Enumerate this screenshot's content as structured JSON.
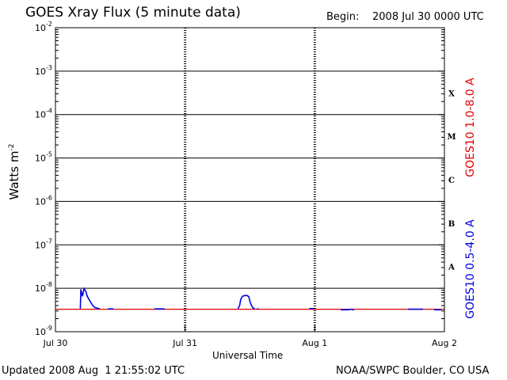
{
  "header": {
    "title": "GOES Xray Flux (5 minute data)",
    "begin_label": "Begin:",
    "begin_value": "2008 Jul 30 0000 UTC"
  },
  "footer": {
    "updated": "Updated 2008 Aug  1 21:55:02 UTC",
    "credit": "NOAA/SWPC Boulder, CO USA"
  },
  "chart_data": {
    "type": "line",
    "title": "GOES Xray Flux (5 minute data)",
    "xlabel": "Universal Time",
    "ylabel": "Watts m",
    "ylabel_superscript": "-2",
    "y_scale": "log",
    "ylim": [
      1e-09,
      0.01
    ],
    "x_range_hours": [
      0,
      72
    ],
    "x_ticks": [
      {
        "hours": 0,
        "label": "Jul 30"
      },
      {
        "hours": 24,
        "label": "Jul 31"
      },
      {
        "hours": 48,
        "label": "Aug 1"
      },
      {
        "hours": 72,
        "label": "Aug 2"
      }
    ],
    "y_ticks": [
      {
        "value": 0.01,
        "label": "10",
        "exp": "-2"
      },
      {
        "value": 0.001,
        "label": "10",
        "exp": "-3"
      },
      {
        "value": 0.0001,
        "label": "10",
        "exp": "-4"
      },
      {
        "value": 1e-05,
        "label": "10",
        "exp": "-5"
      },
      {
        "value": 1e-06,
        "label": "10",
        "exp": "-6"
      },
      {
        "value": 1e-07,
        "label": "10",
        "exp": "-7"
      },
      {
        "value": 1e-08,
        "label": "10",
        "exp": "-8"
      },
      {
        "value": 1e-09,
        "label": "10",
        "exp": "-9"
      }
    ],
    "flare_classes": [
      {
        "label": "X",
        "decade": [
          0.0001,
          0.001
        ]
      },
      {
        "label": "M",
        "decade": [
          1e-05,
          0.0001
        ]
      },
      {
        "label": "C",
        "decade": [
          1e-06,
          1e-05
        ]
      },
      {
        "label": "B",
        "decade": [
          1e-07,
          1e-06
        ]
      },
      {
        "label": "A",
        "decade": [
          1e-08,
          1e-07
        ]
      }
    ],
    "grid": true,
    "series": [
      {
        "name": "GOES10 1.0-8.0 A",
        "color": "#e00000",
        "points": [
          [
            0.0,
            3.3e-09
          ],
          [
            72.0,
            3.3e-09
          ]
        ]
      },
      {
        "name": "GOES10 0.5-4.0 A",
        "color": "#0000e0",
        "points": [
          [
            4.6,
            3.4e-09
          ],
          [
            4.7,
            9.5e-09
          ],
          [
            5.0,
            6.5e-09
          ],
          [
            5.3,
            9.8e-09
          ],
          [
            5.6,
            8.6e-09
          ],
          [
            5.9,
            6.5e-09
          ],
          [
            6.3,
            5.3e-09
          ],
          [
            6.6,
            4.6e-09
          ],
          [
            6.9,
            4e-09
          ],
          [
            7.3,
            3.6e-09
          ],
          [
            7.7,
            3.5e-09
          ],
          [
            8.0,
            3.4e-09
          ],
          [
            8.2,
            3.35e-09
          ],
          [
            null,
            null
          ],
          [
            9.7,
            3.35e-09
          ],
          [
            10.7,
            3.35e-09
          ],
          [
            null,
            null
          ],
          [
            18.3,
            3.35e-09
          ],
          [
            20.2,
            3.35e-09
          ],
          [
            null,
            null
          ],
          [
            33.8,
            3.4e-09
          ],
          [
            34.1,
            4e-09
          ],
          [
            34.3,
            5.6e-09
          ],
          [
            34.6,
            6.5e-09
          ],
          [
            35.0,
            6.8e-09
          ],
          [
            35.5,
            6.8e-09
          ],
          [
            35.8,
            6.4e-09
          ],
          [
            36.0,
            5e-09
          ],
          [
            36.3,
            4e-09
          ],
          [
            36.6,
            3.5e-09
          ],
          [
            36.9,
            3.4e-09
          ],
          [
            null,
            null
          ],
          [
            37.3,
            3.35e-09
          ],
          [
            37.6,
            3.35e-09
          ],
          [
            null,
            null
          ],
          [
            47.0,
            3.4e-09
          ],
          [
            47.8,
            3.4e-09
          ],
          [
            null,
            null
          ],
          [
            52.8,
            3.2e-09
          ],
          [
            54.2,
            3.2e-09
          ],
          [
            54.6,
            3.3e-09
          ],
          [
            55.3,
            3.2e-09
          ],
          [
            null,
            null
          ],
          [
            65.3,
            3.3e-09
          ],
          [
            68.0,
            3.3e-09
          ],
          [
            null,
            null
          ],
          [
            70.1,
            3.2e-09
          ],
          [
            71.4,
            3.2e-09
          ]
        ]
      }
    ]
  }
}
